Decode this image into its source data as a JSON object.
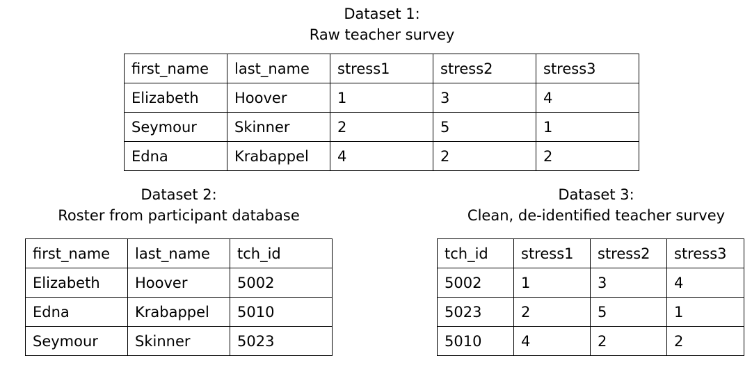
{
  "dataset1": {
    "title": "Dataset 1:",
    "subtitle": "Raw teacher survey",
    "columns": [
      "first_name",
      "last_name",
      "stress1",
      "stress2",
      "stress3"
    ],
    "rows": [
      [
        "Elizabeth",
        "Hoover",
        "1",
        "3",
        "4"
      ],
      [
        "Seymour",
        "Skinner",
        "2",
        "5",
        "1"
      ],
      [
        "Edna",
        "Krabappel",
        "4",
        "2",
        "2"
      ]
    ]
  },
  "dataset2": {
    "title": "Dataset 2:",
    "subtitle": "Roster from participant database",
    "columns": [
      "first_name",
      "last_name",
      "tch_id"
    ],
    "rows": [
      [
        "Elizabeth",
        "Hoover",
        "5002"
      ],
      [
        "Edna",
        "Krabappel",
        "5010"
      ],
      [
        "Seymour",
        "Skinner",
        "5023"
      ]
    ]
  },
  "dataset3": {
    "title": "Dataset 3:",
    "subtitle": "Clean, de-identified teacher survey",
    "columns": [
      "tch_id",
      "stress1",
      "stress2",
      "stress3"
    ],
    "rows": [
      [
        "5002",
        "1",
        "3",
        "4"
      ],
      [
        "5023",
        "2",
        "5",
        "1"
      ],
      [
        "5010",
        "4",
        "2",
        "2"
      ]
    ]
  }
}
